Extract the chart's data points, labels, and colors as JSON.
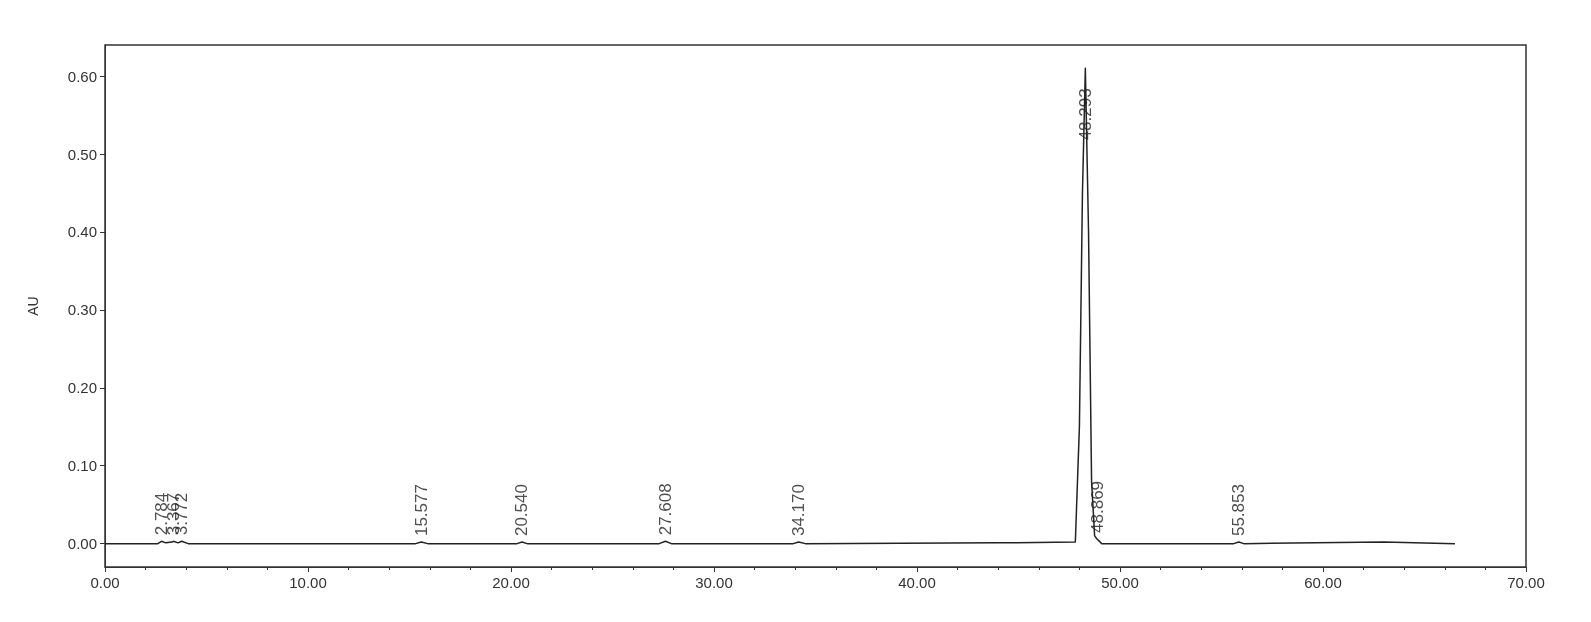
{
  "chart_data": {
    "type": "line",
    "ylabel": "AU",
    "series": [
      {
        "color": "#222222",
        "x": [
          0,
          2.6,
          2.784,
          3.0,
          3.3,
          3.367,
          3.6,
          3.772,
          4.1,
          10,
          15.3,
          15.577,
          15.9,
          20.3,
          20.54,
          20.8,
          27.3,
          27.608,
          27.9,
          33.9,
          34.17,
          34.5,
          44,
          47.8,
          48.0,
          48.15,
          48.293,
          48.45,
          48.6,
          48.75,
          48.869,
          49.1,
          55.6,
          55.853,
          56.1,
          63,
          66.5
        ],
        "values": [
          0,
          0,
          0.003,
          0.001,
          0.002,
          0.003,
          0.001,
          0.003,
          0,
          0,
          0,
          0.002,
          0,
          0,
          0.002,
          0,
          0,
          0.003,
          0,
          0,
          0.002,
          0,
          0.001,
          0.002,
          0.15,
          0.45,
          0.61,
          0.4,
          0.08,
          0.01,
          0.006,
          0,
          0,
          0.002,
          0,
          0.002,
          0
        ]
      }
    ],
    "annotations": [
      {
        "text": "2.784",
        "x": 2.784,
        "y": 0.003
      },
      {
        "text": "3.367",
        "x": 3.367,
        "y": 0.003
      },
      {
        "text": "3.772",
        "x": 3.772,
        "y": 0.003
      },
      {
        "text": "15.577",
        "x": 15.577,
        "y": 0.002
      },
      {
        "text": "20.540",
        "x": 20.54,
        "y": 0.002
      },
      {
        "text": "27.608",
        "x": 27.608,
        "y": 0.003
      },
      {
        "text": "34.170",
        "x": 34.17,
        "y": 0.002
      },
      {
        "text": "48.293",
        "x": 48.293,
        "y": 0.61
      },
      {
        "text": "48.869",
        "x": 48.869,
        "y": 0.006
      },
      {
        "text": "55.853",
        "x": 55.853,
        "y": 0.002
      }
    ],
    "xlim": [
      0,
      70
    ],
    "xticks": [
      {
        "value": 0,
        "label": "0.00"
      },
      {
        "value": 10,
        "label": "10.00"
      },
      {
        "value": 20,
        "label": "20.00"
      },
      {
        "value": 30,
        "label": "30.00"
      },
      {
        "value": 40,
        "label": "40.00"
      },
      {
        "value": 50,
        "label": "50.00"
      },
      {
        "value": 60,
        "label": "60.00"
      },
      {
        "value": 70,
        "label": "70.00"
      }
    ],
    "ylim": [
      -0.03,
      0.64
    ],
    "yticks": [
      {
        "value": 0,
        "label": "0.00"
      },
      {
        "value": 0.1,
        "label": "0.10"
      },
      {
        "value": 0.2,
        "label": "0.20"
      },
      {
        "value": 0.3,
        "label": "0.30"
      },
      {
        "value": 0.4,
        "label": "0.40"
      },
      {
        "value": 0.5,
        "label": "0.50"
      },
      {
        "value": 0.6,
        "label": "0.60"
      }
    ],
    "marker": "none",
    "line_style": "solid",
    "grid": false
  }
}
